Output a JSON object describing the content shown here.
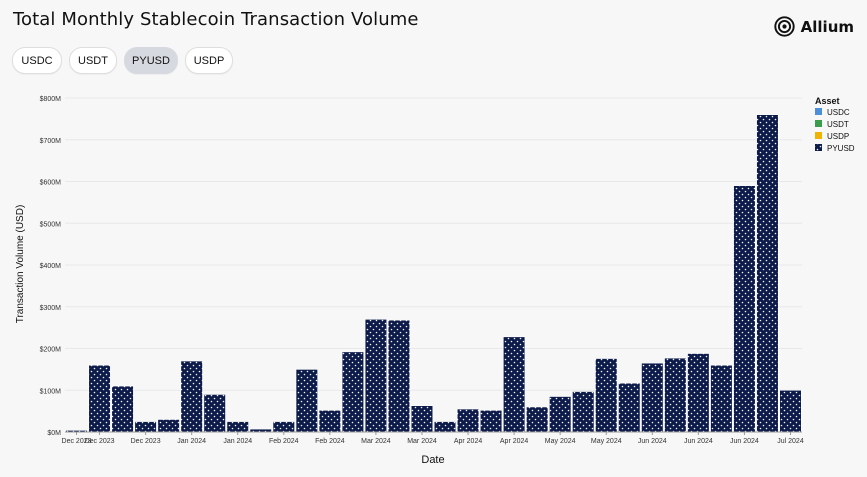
{
  "title": "Total Monthly Stablecoin Transaction Volume",
  "brand": {
    "name": "Allium",
    "icon": "allium-logo-icon"
  },
  "tabs": [
    {
      "label": "USDC",
      "active": false
    },
    {
      "label": "USDT",
      "active": false
    },
    {
      "label": "PYUSD",
      "active": true
    },
    {
      "label": "USDP",
      "active": false
    }
  ],
  "colors": {
    "usdc": "#4c8fd8",
    "usdt": "#3a9d4e",
    "usdp": "#f0b400",
    "pyusd": "#0d1b4b",
    "active_tab": "#d6d9df",
    "grid": "#e8e8e8"
  },
  "chart_data": {
    "type": "bar",
    "title": "",
    "xlabel": "Date",
    "ylabel": "Transaction Volume (USD)",
    "ylim": [
      0,
      800000000
    ],
    "ytick_labels": [
      "$0M",
      "$100M",
      "$200M",
      "$300M",
      "$400M",
      "$500M",
      "$600M",
      "$700M",
      "$800M"
    ],
    "y_ticks": [
      0,
      100000000,
      200000000,
      300000000,
      400000000,
      500000000,
      600000000,
      700000000,
      800000000
    ],
    "legend": {
      "title": "Asset",
      "placement": "right",
      "items": [
        {
          "label": "USDC",
          "color": "#4c8fd8"
        },
        {
          "label": "USDT",
          "color": "#3a9d4e"
        },
        {
          "label": "USDP",
          "color": "#f0b400"
        },
        {
          "label": "PYUSD",
          "color": "#0d1b4b"
        }
      ]
    },
    "x_tick_labels": [
      "Dec 2023",
      "Dec 2023",
      "Dec 2023",
      "Jan 2024",
      "Jan 2024",
      "Feb 2024",
      "Feb 2024",
      "Mar 2024",
      "Mar 2024",
      "Apr 2024",
      "Apr 2024",
      "May 2024",
      "May 2024",
      "Jun 2024",
      "Jun 2024",
      "Jun 2024",
      "Jul 2024"
    ],
    "x_ticks": [
      0,
      1,
      3,
      5,
      7,
      9,
      11,
      13,
      15,
      17,
      19,
      21,
      23,
      25,
      27,
      29,
      31
    ],
    "series": [
      {
        "name": "PYUSD",
        "values": [
          4000000,
          160000000,
          110000000,
          25000000,
          30000000,
          170000000,
          90000000,
          25000000,
          7000000,
          25000000,
          150000000,
          52000000,
          192000000,
          270000000,
          268000000,
          63000000,
          25000000,
          55000000,
          52000000,
          228000000,
          60000000,
          85000000,
          97000000,
          176000000,
          117000000,
          165000000,
          177000000,
          188000000,
          160000000,
          590000000,
          760000000,
          100000000
        ]
      }
    ],
    "grid": true
  }
}
